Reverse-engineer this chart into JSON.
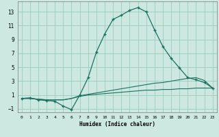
{
  "xlabel": "Humidex (Indice chaleur)",
  "bg_color": "#cce8e0",
  "grid_color": "#99ccbb",
  "line_color": "#1a7060",
  "x": [
    0,
    1,
    2,
    3,
    4,
    5,
    6,
    7,
    8,
    9,
    10,
    11,
    12,
    13,
    14,
    15,
    16,
    17,
    18,
    19,
    20,
    21,
    22,
    23
  ],
  "y_main": [
    0.5,
    0.6,
    0.3,
    0.2,
    0.1,
    -0.6,
    -1.1,
    1.0,
    3.5,
    7.2,
    9.8,
    11.9,
    12.5,
    13.2,
    13.6,
    13.0,
    10.4,
    8.0,
    6.3,
    4.9,
    3.5,
    3.2,
    2.8,
    2.0
  ],
  "y_line1": [
    0.5,
    0.5,
    0.4,
    0.3,
    0.3,
    0.3,
    0.5,
    0.9,
    1.1,
    1.3,
    1.5,
    1.7,
    1.9,
    2.1,
    2.3,
    2.5,
    2.7,
    2.8,
    3.0,
    3.2,
    3.4,
    3.5,
    3.1,
    2.0
  ],
  "y_line2": [
    0.5,
    0.5,
    0.4,
    0.3,
    0.3,
    0.3,
    0.5,
    0.8,
    1.0,
    1.1,
    1.2,
    1.3,
    1.4,
    1.5,
    1.6,
    1.7,
    1.7,
    1.8,
    1.8,
    1.9,
    1.9,
    2.0,
    2.0,
    2.0
  ],
  "ylim": [
    -1.5,
    14.5
  ],
  "xlim": [
    -0.5,
    23.5
  ],
  "yticks": [
    -1,
    1,
    3,
    5,
    7,
    9,
    11,
    13
  ],
  "xticks": [
    0,
    1,
    2,
    3,
    4,
    5,
    6,
    7,
    8,
    9,
    10,
    11,
    12,
    13,
    14,
    15,
    16,
    17,
    18,
    19,
    20,
    21,
    22,
    23
  ]
}
